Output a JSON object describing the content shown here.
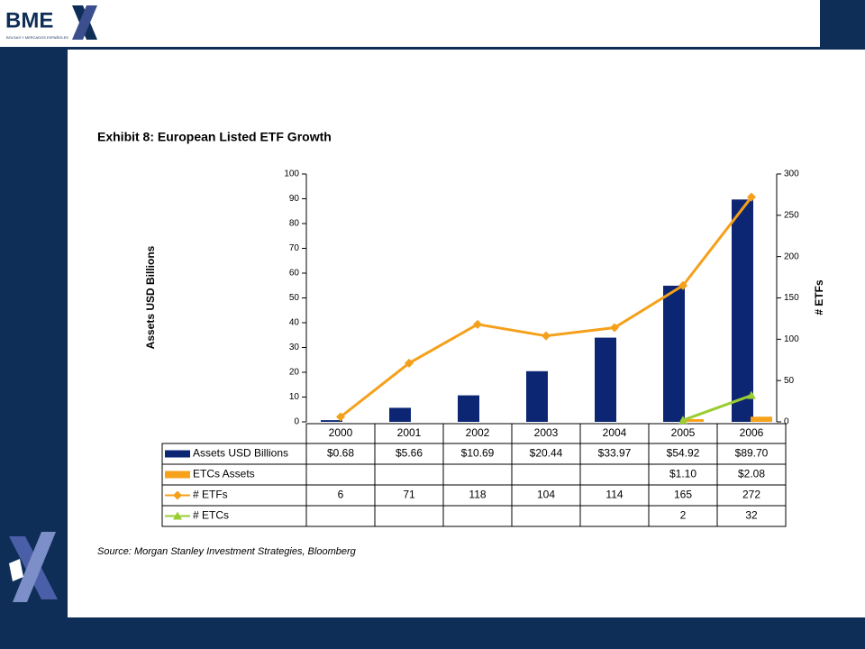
{
  "header": {
    "logo": "BME",
    "logo_sub": "BOLSAS Y MERCADOS ESPAÑOLES"
  },
  "chart_data": {
    "type": "bar",
    "title": "Exhibit 8: European Listed ETF Growth",
    "ylabel": "Assets USD Billions",
    "y2label": "# ETFs",
    "source": "Source: Morgan Stanley Investment Strategies, Bloomberg",
    "categories": [
      "2000",
      "2001",
      "2002",
      "2003",
      "2004",
      "2005",
      "2006"
    ],
    "series": [
      {
        "name": "Assets USD Billions",
        "type": "bar",
        "color": "#0c2673",
        "values": [
          0.68,
          5.66,
          10.69,
          20.44,
          33.97,
          54.92,
          89.7
        ],
        "value_labels": [
          "$0.68",
          "$5.66",
          "$10.69",
          "$20.44",
          "$33.97",
          "$54.92",
          "$89.70"
        ]
      },
      {
        "name": "ETCs Assets",
        "type": "bar",
        "color": "#f7a21b",
        "values": [
          null,
          null,
          null,
          null,
          null,
          1.1,
          2.08
        ],
        "value_labels": [
          null,
          null,
          null,
          null,
          null,
          "$1.10",
          "$2.08"
        ]
      },
      {
        "name": "# ETFs",
        "type": "line",
        "axis": "y2",
        "marker": "diamond",
        "color": "#f5a01a",
        "values": [
          6,
          71,
          118,
          104,
          114,
          165,
          272
        ]
      },
      {
        "name": "# ETCs",
        "type": "line",
        "axis": "y2",
        "marker": "triangle",
        "color": "#9acd32",
        "values": [
          null,
          null,
          null,
          null,
          null,
          2,
          32
        ]
      }
    ],
    "ylim": [
      0,
      100
    ],
    "yticks": [
      0,
      10,
      20,
      30,
      40,
      50,
      60,
      70,
      80,
      90,
      100
    ],
    "y2lim": [
      0,
      300
    ],
    "y2ticks": [
      0,
      50,
      100,
      150,
      200,
      250,
      300
    ]
  }
}
